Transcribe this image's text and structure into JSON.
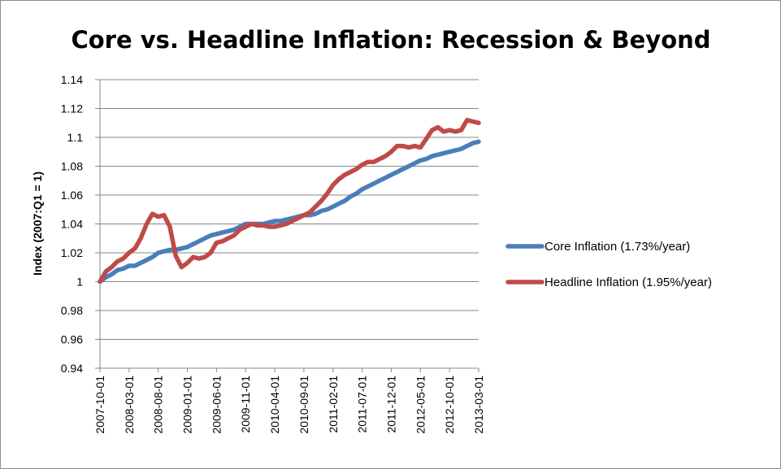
{
  "chart_data": {
    "type": "line",
    "title": "Core vs. Headline Inflation:  Recession & Beyond",
    "xlabel": "",
    "ylabel": "Index (2007:Q1 = 1)",
    "ylim": [
      0.94,
      1.14
    ],
    "y_ticks": [
      "0.94",
      "0.96",
      "0.98",
      "1",
      "1.02",
      "1.04",
      "1.06",
      "1.08",
      "1.1",
      "1.12",
      "1.14"
    ],
    "grid": true,
    "legend": "right",
    "x_tick_labels": [
      {
        "label": "2007-10-01",
        "index": 0
      },
      {
        "label": "2008-03-01",
        "index": 5
      },
      {
        "label": "2008-08-01",
        "index": 10
      },
      {
        "label": "2009-01-01",
        "index": 15
      },
      {
        "label": "2009-06-01",
        "index": 20
      },
      {
        "label": "2009-11-01",
        "index": 25
      },
      {
        "label": "2010-04-01",
        "index": 30
      },
      {
        "label": "2010-09-01",
        "index": 35
      },
      {
        "label": "2011-02-01",
        "index": 40
      },
      {
        "label": "2011-07-01",
        "index": 45
      },
      {
        "label": "2011-12-01",
        "index": 50
      },
      {
        "label": "2012-05-01",
        "index": 55
      },
      {
        "label": "2012-10-01",
        "index": 60
      },
      {
        "label": "2013-03-01",
        "index": 65
      }
    ],
    "series": [
      {
        "name": "Core Inflation (1.73%/year)",
        "color": "#4a7ebb",
        "values": [
          1.0,
          1.003,
          1.005,
          1.008,
          1.009,
          1.011,
          1.011,
          1.013,
          1.015,
          1.017,
          1.02,
          1.021,
          1.022,
          1.022,
          1.023,
          1.024,
          1.026,
          1.028,
          1.03,
          1.032,
          1.033,
          1.034,
          1.035,
          1.036,
          1.038,
          1.04,
          1.04,
          1.04,
          1.04,
          1.041,
          1.042,
          1.042,
          1.043,
          1.044,
          1.045,
          1.046,
          1.046,
          1.047,
          1.049,
          1.05,
          1.052,
          1.054,
          1.056,
          1.059,
          1.061,
          1.064,
          1.066,
          1.068,
          1.07,
          1.072,
          1.074,
          1.076,
          1.078,
          1.08,
          1.082,
          1.084,
          1.085,
          1.087,
          1.088,
          1.089,
          1.09,
          1.091,
          1.092,
          1.094,
          1.096,
          1.097
        ]
      },
      {
        "name": "Headline Inflation (1.95%/year)",
        "color": "#be4b48",
        "values": [
          1.0,
          1.007,
          1.01,
          1.014,
          1.016,
          1.02,
          1.023,
          1.03,
          1.04,
          1.047,
          1.045,
          1.046,
          1.038,
          1.018,
          1.01,
          1.013,
          1.017,
          1.016,
          1.017,
          1.02,
          1.027,
          1.028,
          1.03,
          1.032,
          1.036,
          1.038,
          1.04,
          1.039,
          1.039,
          1.038,
          1.038,
          1.039,
          1.04,
          1.042,
          1.044,
          1.046,
          1.048,
          1.052,
          1.056,
          1.061,
          1.067,
          1.071,
          1.074,
          1.076,
          1.078,
          1.081,
          1.083,
          1.083,
          1.085,
          1.087,
          1.09,
          1.094,
          1.094,
          1.093,
          1.094,
          1.093,
          1.099,
          1.105,
          1.107,
          1.104,
          1.105,
          1.104,
          1.105,
          1.112,
          1.111,
          1.11
        ]
      }
    ]
  }
}
